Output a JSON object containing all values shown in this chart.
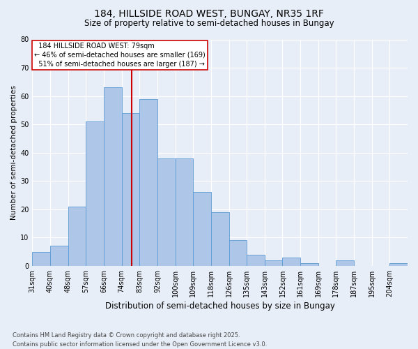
{
  "title_line1": "184, HILLSIDE ROAD WEST, BUNGAY, NR35 1RF",
  "title_line2": "Size of property relative to semi-detached houses in Bungay",
  "xlabel": "Distribution of semi-detached houses by size in Bungay",
  "ylabel": "Number of semi-detached properties",
  "footnote": "Contains HM Land Registry data © Crown copyright and database right 2025.\nContains public sector information licensed under the Open Government Licence v3.0.",
  "bin_labels": [
    "31sqm",
    "40sqm",
    "48sqm",
    "57sqm",
    "66sqm",
    "74sqm",
    "83sqm",
    "92sqm",
    "100sqm",
    "109sqm",
    "118sqm",
    "126sqm",
    "135sqm",
    "143sqm",
    "152sqm",
    "161sqm",
    "169sqm",
    "178sqm",
    "187sqm",
    "195sqm",
    "204sqm"
  ],
  "bar_heights": [
    5,
    7,
    21,
    51,
    63,
    54,
    59,
    38,
    38,
    26,
    19,
    9,
    4,
    2,
    3,
    1,
    0,
    2,
    0,
    0,
    1
  ],
  "n_bins": 21,
  "property_bin_index": 5,
  "property_label": "184 HILLSIDE ROAD WEST: 79sqm",
  "pct_smaller": 46,
  "n_smaller": 169,
  "pct_larger": 51,
  "n_larger": 187,
  "bar_color": "#aec6e8",
  "bar_edge_color": "#5b9bd5",
  "vline_color": "#cc0000",
  "annotation_box_edge_color": "#cc0000",
  "background_color": "#e8eef7",
  "grid_color": "#ffffff",
  "ylim": [
    0,
    80
  ],
  "yticks": [
    0,
    10,
    20,
    30,
    40,
    50,
    60,
    70,
    80
  ],
  "title_fontsize": 10,
  "subtitle_fontsize": 8.5,
  "xlabel_fontsize": 8.5,
  "ylabel_fontsize": 7.5,
  "tick_fontsize": 7,
  "annotation_fontsize": 7,
  "footnote_fontsize": 6
}
